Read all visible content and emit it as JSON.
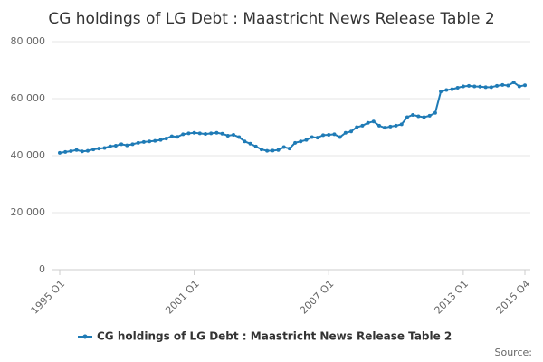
{
  "chart_data": {
    "type": "line",
    "title": "CG holdings of LG Debt : Maastricht News Release Table 2",
    "source": "Source:",
    "categories": [
      "1995 Q1",
      null,
      null,
      null,
      null,
      null,
      null,
      null,
      null,
      null,
      null,
      null,
      null,
      null,
      null,
      null,
      null,
      null,
      null,
      null,
      null,
      null,
      null,
      null,
      "2001 Q1",
      null,
      null,
      null,
      null,
      null,
      null,
      null,
      null,
      null,
      null,
      null,
      null,
      null,
      null,
      null,
      null,
      null,
      null,
      null,
      null,
      null,
      null,
      null,
      "2007 Q1",
      null,
      null,
      null,
      null,
      null,
      null,
      null,
      null,
      null,
      null,
      null,
      null,
      null,
      null,
      null,
      null,
      null,
      null,
      null,
      null,
      null,
      null,
      null,
      "2013 Q1",
      null,
      null,
      null,
      null,
      null,
      null,
      null,
      null,
      null,
      null,
      "2015 Q4"
    ],
    "series": [
      {
        "name": "CG holdings of LG Debt : Maastricht News Release Table 2",
        "color": "#1f7bb6",
        "values": [
          41000,
          41300,
          41600,
          42000,
          41500,
          41700,
          42200,
          42500,
          42700,
          43300,
          43500,
          44000,
          43600,
          44000,
          44500,
          44800,
          45000,
          45200,
          45500,
          46000,
          46800,
          46600,
          47500,
          47800,
          48000,
          47800,
          47600,
          47800,
          48000,
          47700,
          47000,
          47300,
          46500,
          45000,
          44200,
          43200,
          42200,
          41700,
          41800,
          42000,
          43000,
          42500,
          44500,
          45000,
          45500,
          46500,
          46300,
          47200,
          47300,
          47500,
          46500,
          48000,
          48500,
          50000,
          50500,
          51500,
          52000,
          50500,
          49800,
          50200,
          50500,
          51000,
          53500,
          54300,
          53800,
          53500,
          54000,
          55000,
          62500,
          63000,
          63300,
          63800,
          64300,
          64500,
          64300,
          64200,
          64000,
          64000,
          64500,
          64800,
          64600,
          65700,
          64300,
          64700
        ]
      }
    ],
    "ylim": [
      0,
      80000
    ],
    "yticks": [
      0,
      {
        "value": 20000,
        "label": "20 000"
      },
      {
        "value": 40000,
        "label": "40 000"
      },
      {
        "value": 60000,
        "label": "60 000"
      },
      {
        "value": 80000,
        "label": "80 000"
      }
    ],
    "grid": true
  }
}
